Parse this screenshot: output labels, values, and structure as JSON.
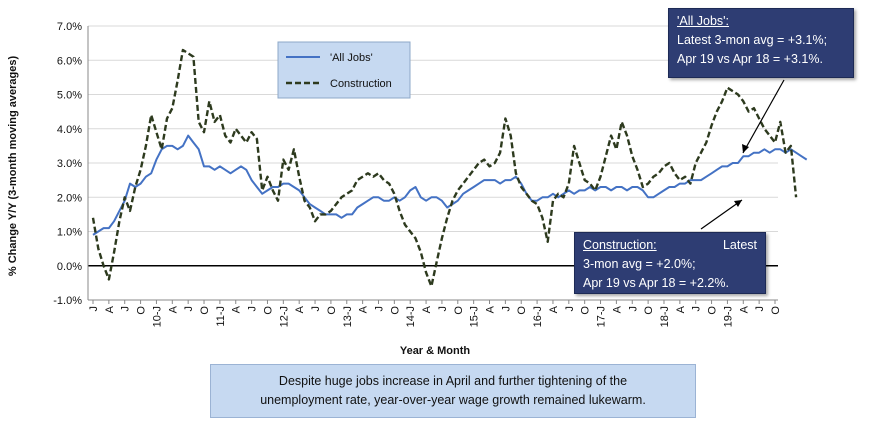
{
  "chart_data": {
    "type": "line",
    "title": "",
    "ylabel": "% Change Y/Y (3-month moving averages)",
    "xlabel": "Year & Month",
    "ylim": [
      -1.0,
      7.0
    ],
    "yticks": [
      "-1.0%",
      "0.0%",
      "1.0%",
      "2.0%",
      "3.0%",
      "4.0%",
      "5.0%",
      "6.0%",
      "7.0%"
    ],
    "xticks": [
      "J",
      "A",
      "J",
      "O",
      "10-J",
      "A",
      "J",
      "O",
      "11-J",
      "A",
      "J",
      "O",
      "12-J",
      "A",
      "J",
      "O",
      "13-J",
      "A",
      "J",
      "O",
      "14-J",
      "A",
      "J",
      "O",
      "15-J",
      "A",
      "J",
      "O",
      "16-J",
      "A",
      "J",
      "O",
      "17-J",
      "A",
      "J",
      "O",
      "18-J",
      "A",
      "J",
      "O",
      "19-J",
      "A",
      "J",
      "O"
    ],
    "legend": {
      "position": "top-left",
      "entries": [
        "'All Jobs'",
        "Construction"
      ]
    },
    "series": [
      {
        "name": "'All Jobs'",
        "color": "#4472c4",
        "style": "solid",
        "values": [
          0.9,
          1.0,
          1.1,
          1.1,
          1.3,
          1.6,
          1.9,
          2.4,
          2.3,
          2.4,
          2.6,
          2.7,
          3.1,
          3.4,
          3.5,
          3.5,
          3.4,
          3.5,
          3.8,
          3.6,
          3.4,
          2.9,
          2.9,
          2.8,
          2.9,
          2.8,
          2.7,
          2.8,
          2.9,
          2.8,
          2.5,
          2.3,
          2.1,
          2.2,
          2.3,
          2.3,
          2.4,
          2.4,
          2.3,
          2.2,
          2.0,
          1.8,
          1.7,
          1.6,
          1.5,
          1.5,
          1.5,
          1.4,
          1.5,
          1.5,
          1.7,
          1.8,
          1.9,
          2.0,
          2.0,
          1.9,
          1.9,
          2.0,
          1.9,
          2.0,
          2.2,
          2.3,
          2.0,
          1.9,
          2.0,
          2.0,
          1.9,
          1.7,
          1.8,
          1.9,
          2.1,
          2.2,
          2.3,
          2.4,
          2.5,
          2.5,
          2.5,
          2.4,
          2.5,
          2.5,
          2.6,
          2.4,
          2.1,
          1.9,
          1.9,
          2.0,
          2.0,
          2.1,
          2.0,
          2.1,
          2.2,
          2.1,
          2.2,
          2.2,
          2.3,
          2.2,
          2.3,
          2.3,
          2.2,
          2.3,
          2.3,
          2.2,
          2.3,
          2.3,
          2.2,
          2.0,
          2.0,
          2.1,
          2.2,
          2.3,
          2.3,
          2.4,
          2.4,
          2.5,
          2.5,
          2.5,
          2.6,
          2.7,
          2.8,
          2.9,
          2.9,
          3.0,
          3.0,
          3.2,
          3.2,
          3.3,
          3.3,
          3.4,
          3.3,
          3.4,
          3.4,
          3.3,
          3.4,
          3.3,
          3.2,
          3.1
        ]
      },
      {
        "name": "Construction",
        "color": "#2d3a1e",
        "style": "dashed",
        "values": [
          1.4,
          0.5,
          0.0,
          -0.4,
          0.4,
          1.3,
          2.0,
          1.6,
          2.3,
          2.8,
          3.5,
          4.4,
          3.9,
          3.4,
          4.3,
          4.6,
          5.4,
          6.3,
          6.2,
          6.1,
          4.2,
          3.9,
          4.8,
          4.2,
          4.4,
          3.8,
          3.6,
          4.0,
          3.8,
          3.6,
          3.9,
          3.7,
          2.2,
          2.6,
          2.2,
          1.9,
          3.1,
          2.8,
          3.4,
          2.6,
          1.9,
          1.7,
          1.3,
          1.5,
          1.5,
          1.6,
          1.8,
          2.0,
          2.1,
          2.2,
          2.5,
          2.6,
          2.7,
          2.6,
          2.7,
          2.5,
          2.4,
          2.1,
          1.6,
          1.2,
          1.0,
          0.8,
          0.4,
          -0.2,
          -0.6,
          0.1,
          0.8,
          1.4,
          1.9,
          2.2,
          2.4,
          2.6,
          2.8,
          3.0,
          3.1,
          2.9,
          3.0,
          3.3,
          4.3,
          3.8,
          2.7,
          2.3,
          2.1,
          1.9,
          1.8,
          1.4,
          0.7,
          1.9,
          2.1,
          2.0,
          2.4,
          3.5,
          3.0,
          2.5,
          2.4,
          2.2,
          2.6,
          3.2,
          3.8,
          3.4,
          4.2,
          3.8,
          3.2,
          2.8,
          2.3,
          2.4,
          2.6,
          2.7,
          2.9,
          3.0,
          2.7,
          2.5,
          2.6,
          2.4,
          3.0,
          3.3,
          3.6,
          4.1,
          4.5,
          4.8,
          5.2,
          5.1,
          5.0,
          4.8,
          4.5,
          4.6,
          4.3,
          4.0,
          3.8,
          3.6,
          4.2,
          3.3,
          3.5,
          2.0
        ]
      }
    ]
  },
  "callouts": {
    "all_jobs": {
      "heading": "'All Jobs':",
      "line1": "Latest 3-mon avg = +3.1%;",
      "line2": "Apr 19 vs Apr 18 = +3.1%."
    },
    "construction": {
      "heading": "Construction:",
      "latest": "Latest",
      "line1": "3-mon avg = +2.0%;",
      "line2": "Apr 19 vs Apr 18 = +2.2%."
    }
  },
  "note": {
    "line1": "Despite huge jobs increase in April and further tightening of the",
    "line2": "unemployment rate, year-over-year wage growth remained lukewarm."
  }
}
